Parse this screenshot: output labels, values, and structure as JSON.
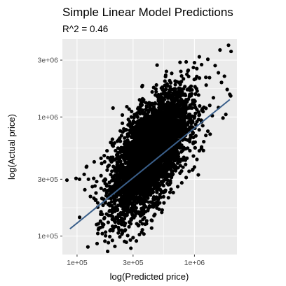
{
  "chart_data": {
    "type": "scatter",
    "title": "Simple Linear Model Predictions",
    "subtitle": "R^2 = 0.46",
    "xlabel": "log(Predicted price)",
    "ylabel": "log(Actual price)",
    "x_scale": "log10",
    "y_scale": "log10",
    "xlim": [
      75000,
      2300000
    ],
    "ylim": [
      70000,
      4500000
    ],
    "x_ticks": [
      {
        "value": 100000,
        "label": "1e+05"
      },
      {
        "value": 300000,
        "label": "3e+05"
      },
      {
        "value": 1000000,
        "label": "1e+06"
      }
    ],
    "y_ticks": [
      {
        "value": 100000,
        "label": "1e+05"
      },
      {
        "value": 300000,
        "label": "3e+05"
      },
      {
        "value": 1000000,
        "label": "1e+06"
      },
      {
        "value": 3000000,
        "label": "3e+06"
      }
    ],
    "grid": true,
    "theme": "gray-panel",
    "colors": {
      "panel": "#ebebeb",
      "grid": "#ffffff",
      "points": "#000000",
      "fit_line": "#3a5f8a"
    },
    "points": [
      [
        1950000,
        4000000
      ],
      [
        1650000,
        3650000
      ],
      [
        2050000,
        3550000
      ],
      [
        1100000,
        3200000
      ],
      [
        1300000,
        3050000
      ],
      [
        1150000,
        2750000
      ],
      [
        1500000,
        2700000
      ],
      [
        850000,
        2900000
      ],
      [
        980000,
        2600000
      ],
      [
        1600000,
        2350000
      ],
      [
        1800000,
        2200000
      ],
      [
        1250000,
        2150000
      ],
      [
        1700000,
        1950000
      ],
      [
        1900000,
        1700000
      ],
      [
        2000000,
        1550000
      ],
      [
        1450000,
        1450000
      ],
      [
        1850000,
        1050000
      ],
      [
        1600000,
        1200000
      ],
      [
        1350000,
        1250000
      ],
      [
        1750000,
        980000
      ],
      [
        560000,
        2000000
      ],
      [
        620000,
        1800000
      ],
      [
        480000,
        1500000
      ],
      [
        420000,
        1300000
      ],
      [
        350000,
        1150000
      ],
      [
        290000,
        1000000
      ],
      [
        260000,
        780000
      ],
      [
        230000,
        650000
      ],
      [
        200000,
        580000
      ],
      [
        180000,
        520000
      ],
      [
        160000,
        450000
      ],
      [
        140000,
        420000
      ],
      [
        120000,
        380000
      ],
      [
        115000,
        330000
      ],
      [
        105000,
        300000
      ],
      [
        98000,
        305000
      ],
      [
        82000,
        295000
      ],
      [
        125000,
        300000
      ],
      [
        135000,
        260000
      ],
      [
        145000,
        230000
      ],
      [
        130000,
        215000
      ],
      [
        150000,
        190000
      ],
      [
        160000,
        160000
      ],
      [
        170000,
        140000
      ],
      [
        165000,
        120000
      ],
      [
        175000,
        108000
      ],
      [
        190000,
        99000
      ],
      [
        185000,
        88000
      ],
      [
        200000,
        92000
      ],
      [
        210000,
        82000
      ],
      [
        225000,
        118000
      ],
      [
        240000,
        112000
      ],
      [
        270000,
        101000
      ],
      [
        300000,
        97000
      ],
      [
        320000,
        91000
      ],
      [
        340000,
        103000
      ],
      [
        360000,
        113000
      ],
      [
        380000,
        126000
      ],
      [
        430000,
        136000
      ],
      [
        460000,
        152000
      ],
      [
        500000,
        168000
      ],
      [
        550000,
        190000
      ],
      [
        600000,
        210000
      ],
      [
        660000,
        232000
      ],
      [
        720000,
        260000
      ],
      [
        780000,
        280000
      ],
      [
        850000,
        310000
      ],
      [
        900000,
        350000
      ],
      [
        1000000,
        380000
      ],
      [
        1050000,
        440000
      ],
      [
        980000,
        470000
      ],
      [
        1100000,
        520000
      ],
      [
        1150000,
        560000
      ],
      [
        1200000,
        620000
      ],
      [
        1250000,
        700000
      ],
      [
        1300000,
        760000
      ]
    ],
    "cloud": {
      "n_points": 4500,
      "center_x": 420000,
      "center_y": 500000,
      "sd_log10_x": 0.16,
      "sd_log10_y_given_x": 0.19,
      "slope_log": 0.95
    },
    "fit_line": {
      "from": [
        87000,
        115000
      ],
      "to": [
        2000000,
        1400000
      ]
    }
  }
}
